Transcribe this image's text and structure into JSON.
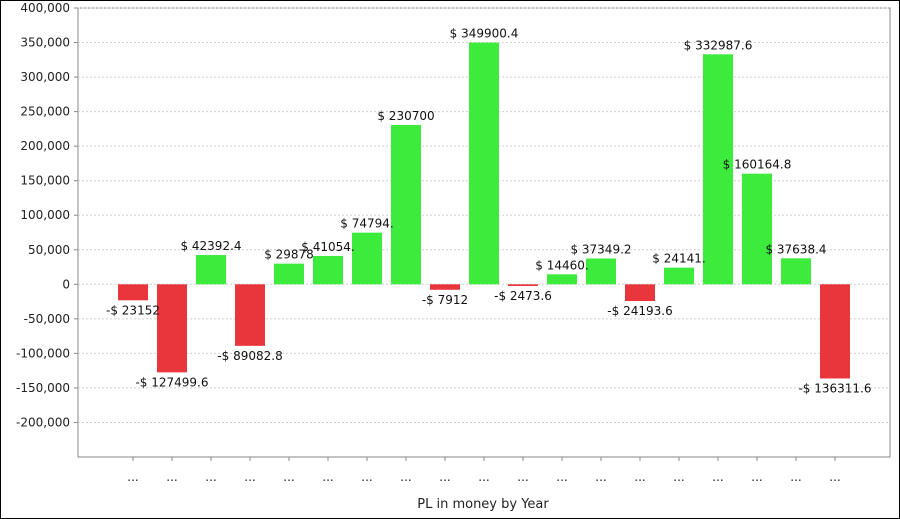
{
  "chart_data": {
    "type": "bar",
    "title": "",
    "xlabel": "PL in money by Year",
    "ylabel": "",
    "ylim": [
      -250000,
      400000
    ],
    "yticks": [
      400000,
      350000,
      300000,
      250000,
      200000,
      150000,
      100000,
      50000,
      0,
      -50000,
      -100000,
      -150000,
      -200000
    ],
    "ytick_labels": [
      "400,000",
      "350,000",
      "300,000",
      "250,000",
      "200,000",
      "150,000",
      "100,000",
      "50,000",
      "0",
      "-50,000",
      "-100,000",
      "-150,000",
      "-200,000"
    ],
    "grid": true,
    "categories": [
      "...",
      "...",
      "...",
      "...",
      "...",
      "...",
      "...",
      "...",
      "...",
      "...",
      "...",
      "...",
      "...",
      "...",
      "...",
      "...",
      "...",
      "...",
      "..."
    ],
    "values": [
      -23152,
      -127499.6,
      42392.4,
      -89082.8,
      29878,
      41054,
      74794,
      230700,
      -7912,
      349900.4,
      -2473.6,
      14460,
      37349.2,
      -24193.6,
      24141,
      332987.6,
      160164.8,
      37638.4,
      -136311.6
    ],
    "data_labels": [
      "-$ 23152",
      "-$ 127499.6",
      "$ 42392.4",
      "-$ 89082.8",
      "$ 29878",
      "$ 41054.",
      "$ 74794.",
      "$ 230700",
      "-$ 7912",
      "$ 349900.4",
      "-$ 2473.6",
      "$ 14460.",
      "$ 37349.2",
      "-$ 24193.6",
      "$ 24141.",
      "$ 332987.6",
      "$ 160164.8",
      "$ 37638.4",
      "-$ 136311.6"
    ],
    "colors": {
      "positive": "#3deb3d",
      "negative": "#e8363c",
      "grid": "#d0d0d0",
      "axis": "#888888"
    }
  }
}
